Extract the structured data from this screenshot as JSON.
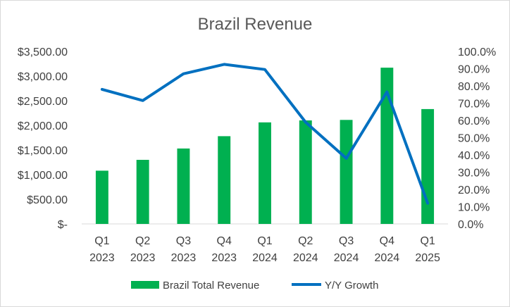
{
  "chart_data": {
    "type": "bar+line",
    "title": "Brazil Revenue",
    "categories": [
      [
        "Q1",
        "2023"
      ],
      [
        "Q2",
        "2023"
      ],
      [
        "Q3",
        "2023"
      ],
      [
        "Q4",
        "2023"
      ],
      [
        "Q1",
        "2024"
      ],
      [
        "Q2",
        "2024"
      ],
      [
        "Q3",
        "2024"
      ],
      [
        "Q4",
        "2024"
      ],
      [
        "Q1",
        "2025"
      ]
    ],
    "series": [
      {
        "name": "Brazil Total Revenue",
        "type": "bar",
        "axis": "left",
        "color": "#00b050",
        "values": [
          1080,
          1300,
          1530,
          1780,
          2060,
          2100,
          2110,
          3170,
          2330
        ]
      },
      {
        "name": "Y/Y Growth",
        "type": "line",
        "axis": "right",
        "color": "#0070c0",
        "values": [
          0.78,
          0.715,
          0.87,
          0.925,
          0.895,
          0.59,
          0.38,
          0.765,
          0.12
        ]
      }
    ],
    "left_axis": {
      "min": 0,
      "max": 3500,
      "step": 500,
      "tick_labels": [
        "$-",
        "$500.00",
        "$1,000.00",
        "$1,500.00",
        "$2,000.00",
        "$2,500.00",
        "$3,000.00",
        "$3,500.00"
      ]
    },
    "right_axis": {
      "min": 0,
      "max": 1,
      "step": 0.1,
      "tick_labels": [
        "0.0%",
        "10.0%",
        "20.0%",
        "30.0%",
        "40.0%",
        "50.0%",
        "60.0%",
        "70.0%",
        "80.0%",
        "90.0%",
        "100.0%"
      ]
    },
    "grid": false,
    "legend_position": "bottom"
  }
}
